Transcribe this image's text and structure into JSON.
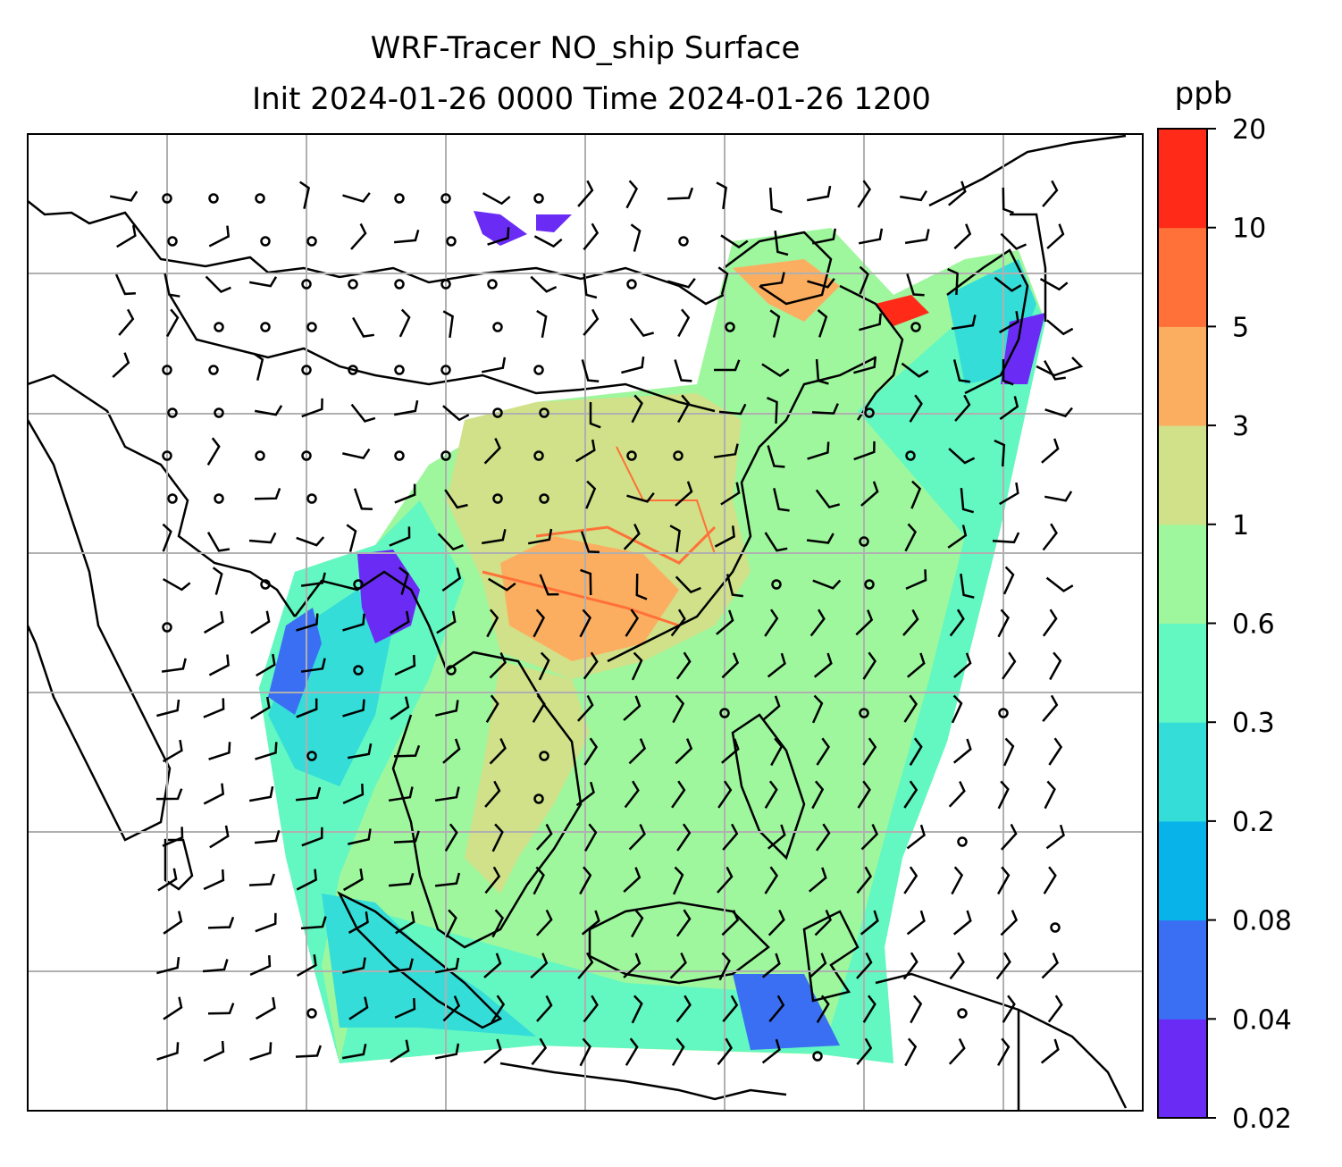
{
  "title": {
    "line1": "WRF-Tracer NO_ship Surface",
    "line2": "Init 2024-01-26 0000 Time 2024-01-26 1200"
  },
  "colorbar": {
    "unit": "ppb",
    "levels": [
      "0.02",
      "0.04",
      "0.08",
      "0.2",
      "0.2",
      "0.3",
      "0.6",
      "1",
      "3",
      "5",
      "10",
      "20"
    ],
    "tick_labels": [
      "0.02",
      "0.04",
      "0.08",
      "0.2",
      "0.3",
      "0.6",
      "1",
      "3",
      "5",
      "10",
      "20"
    ],
    "colors": [
      "#6a2cf5",
      "#3a6ff3",
      "#08b3ea",
      "#34ddd8",
      "#63f7c2",
      "#9ef79d",
      "#d0e189",
      "#fcae60",
      "#ff7138",
      "#ff2a18"
    ]
  },
  "map": {
    "variable": "NO_ship",
    "level": "Surface",
    "gridlines": true,
    "wind_barbs": true,
    "calm_markers": true
  }
}
